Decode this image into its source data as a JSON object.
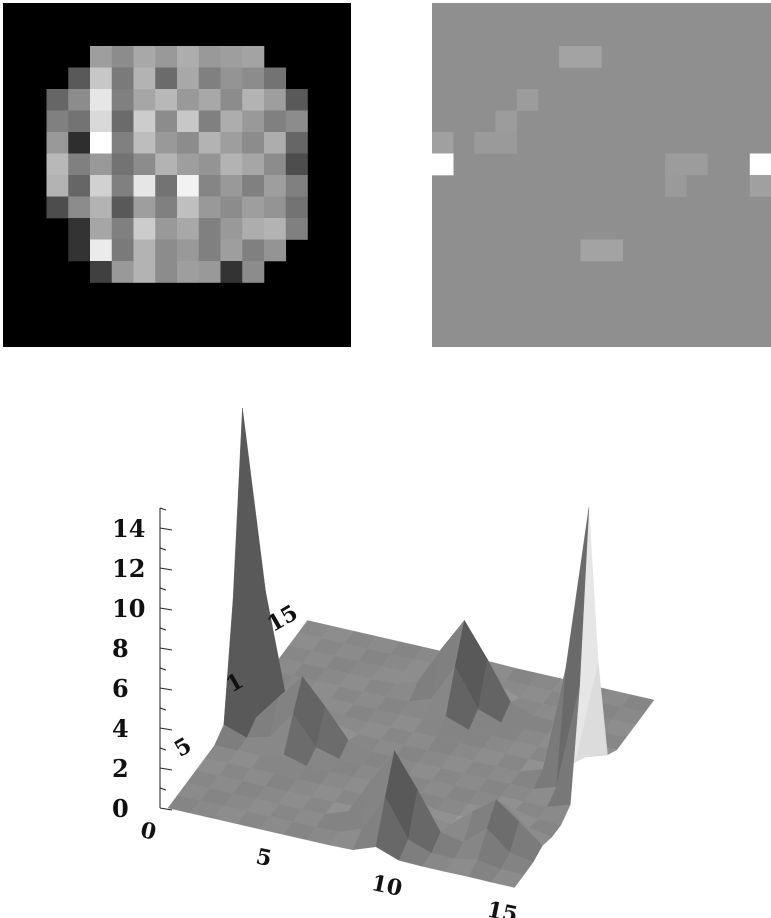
{
  "chart_data": [
    {
      "type": "heatmap",
      "panel": "left",
      "grid_size": 16,
      "background": "#000000",
      "values": [
        [
          0,
          0,
          0,
          0,
          0,
          0,
          0,
          0,
          0,
          0,
          0,
          0,
          0,
          0,
          0,
          0
        ],
        [
          0,
          0,
          0,
          0,
          0,
          0,
          0,
          0,
          0,
          0,
          0,
          0,
          0,
          0,
          0,
          0
        ],
        [
          0,
          0,
          0,
          0,
          0.62,
          0.55,
          0.66,
          0.6,
          0.68,
          0.6,
          0.62,
          0.64,
          0,
          0,
          0,
          0
        ],
        [
          0,
          0,
          0,
          0.35,
          0.78,
          0.48,
          0.7,
          0.42,
          0.66,
          0.5,
          0.58,
          0.55,
          0.45,
          0,
          0,
          0
        ],
        [
          0,
          0,
          0.4,
          0.55,
          0.9,
          0.5,
          0.65,
          0.72,
          0.6,
          0.66,
          0.55,
          0.7,
          0.62,
          0.35,
          0,
          0
        ],
        [
          0,
          0,
          0.5,
          0.45,
          0.85,
          0.42,
          0.8,
          0.55,
          0.78,
          0.5,
          0.68,
          0.6,
          0.5,
          0.55,
          0,
          0
        ],
        [
          0,
          0,
          0.6,
          0.18,
          1.0,
          0.5,
          0.74,
          0.6,
          0.55,
          0.7,
          0.62,
          0.55,
          0.68,
          0.4,
          0,
          0
        ],
        [
          0,
          0,
          0.72,
          0.5,
          0.6,
          0.45,
          0.55,
          0.7,
          0.62,
          0.58,
          0.7,
          0.65,
          0.55,
          0.3,
          0,
          0
        ],
        [
          0,
          0,
          0.7,
          0.4,
          0.82,
          0.5,
          0.9,
          0.45,
          0.95,
          0.52,
          0.6,
          0.5,
          0.62,
          0.5,
          0,
          0
        ],
        [
          0,
          0,
          0.3,
          0.55,
          0.7,
          0.35,
          0.62,
          0.5,
          0.75,
          0.6,
          0.55,
          0.62,
          0.58,
          0.45,
          0,
          0
        ],
        [
          0,
          0,
          0,
          0.2,
          0.65,
          0.5,
          0.8,
          0.6,
          0.66,
          0.5,
          0.6,
          0.68,
          0.7,
          0.5,
          0,
          0
        ],
        [
          0,
          0,
          0,
          0.2,
          0.92,
          0.48,
          0.7,
          0.55,
          0.6,
          0.5,
          0.62,
          0.5,
          0.58,
          0,
          0,
          0
        ],
        [
          0,
          0,
          0,
          0,
          0.25,
          0.6,
          0.7,
          0.55,
          0.62,
          0.6,
          0.2,
          0.55,
          0,
          0,
          0,
          0
        ],
        [
          0,
          0,
          0,
          0,
          0,
          0,
          0,
          0,
          0,
          0,
          0,
          0,
          0,
          0,
          0,
          0
        ],
        [
          0,
          0,
          0,
          0,
          0,
          0,
          0,
          0,
          0,
          0,
          0,
          0,
          0,
          0,
          0,
          0
        ],
        [
          0,
          0,
          0,
          0,
          0,
          0,
          0,
          0,
          0,
          0,
          0,
          0,
          0,
          0,
          0,
          0
        ]
      ]
    },
    {
      "type": "heatmap",
      "panel": "right",
      "grid_size": 16,
      "background": "#8f8f8f",
      "cells": [
        {
          "row": 2,
          "col": 6,
          "shade": "#a3a3a3"
        },
        {
          "row": 2,
          "col": 7,
          "shade": "#a3a3a3"
        },
        {
          "row": 4,
          "col": 4,
          "shade": "#9c9c9c"
        },
        {
          "row": 5,
          "col": 3,
          "shade": "#9c9c9c"
        },
        {
          "row": 6,
          "col": 0,
          "shade": "#a0a0a0"
        },
        {
          "row": 6,
          "col": 2,
          "shade": "#9a9a9a"
        },
        {
          "row": 6,
          "col": 3,
          "shade": "#9a9a9a"
        },
        {
          "row": 7,
          "col": 0,
          "shade": "#ffffff"
        },
        {
          "row": 7,
          "col": 11,
          "shade": "#9c9c9c"
        },
        {
          "row": 7,
          "col": 12,
          "shade": "#9c9c9c"
        },
        {
          "row": 8,
          "col": 11,
          "shade": "#9a9a9a"
        },
        {
          "row": 7,
          "col": 15,
          "shade": "#ffffff"
        },
        {
          "row": 8,
          "col": 15,
          "shade": "#a0a0a0"
        },
        {
          "row": 11,
          "col": 7,
          "shade": "#a3a3a3"
        },
        {
          "row": 11,
          "col": 8,
          "shade": "#a3a3a3"
        }
      ]
    },
    {
      "type": "surface",
      "panel": "bottom",
      "x_ticks": [
        "0",
        "5",
        "10",
        "15"
      ],
      "y_ticks": [
        "5",
        "15"
      ],
      "y_partial_tick": "1",
      "z_ticks": [
        "14",
        "12",
        "10",
        "8",
        "6",
        "4",
        "2",
        "0"
      ],
      "zlim": [
        0,
        15
      ],
      "peaks": [
        {
          "x": 0,
          "y": 8,
          "z": 15
        },
        {
          "x": 15,
          "y": 8,
          "z": 14
        },
        {
          "x": 9,
          "y": 2,
          "z": 4
        },
        {
          "x": 8,
          "y": 12,
          "z": 4
        },
        {
          "x": 3,
          "y": 7,
          "z": 3
        },
        {
          "x": 13,
          "y": 3,
          "z": 2
        }
      ]
    }
  ]
}
